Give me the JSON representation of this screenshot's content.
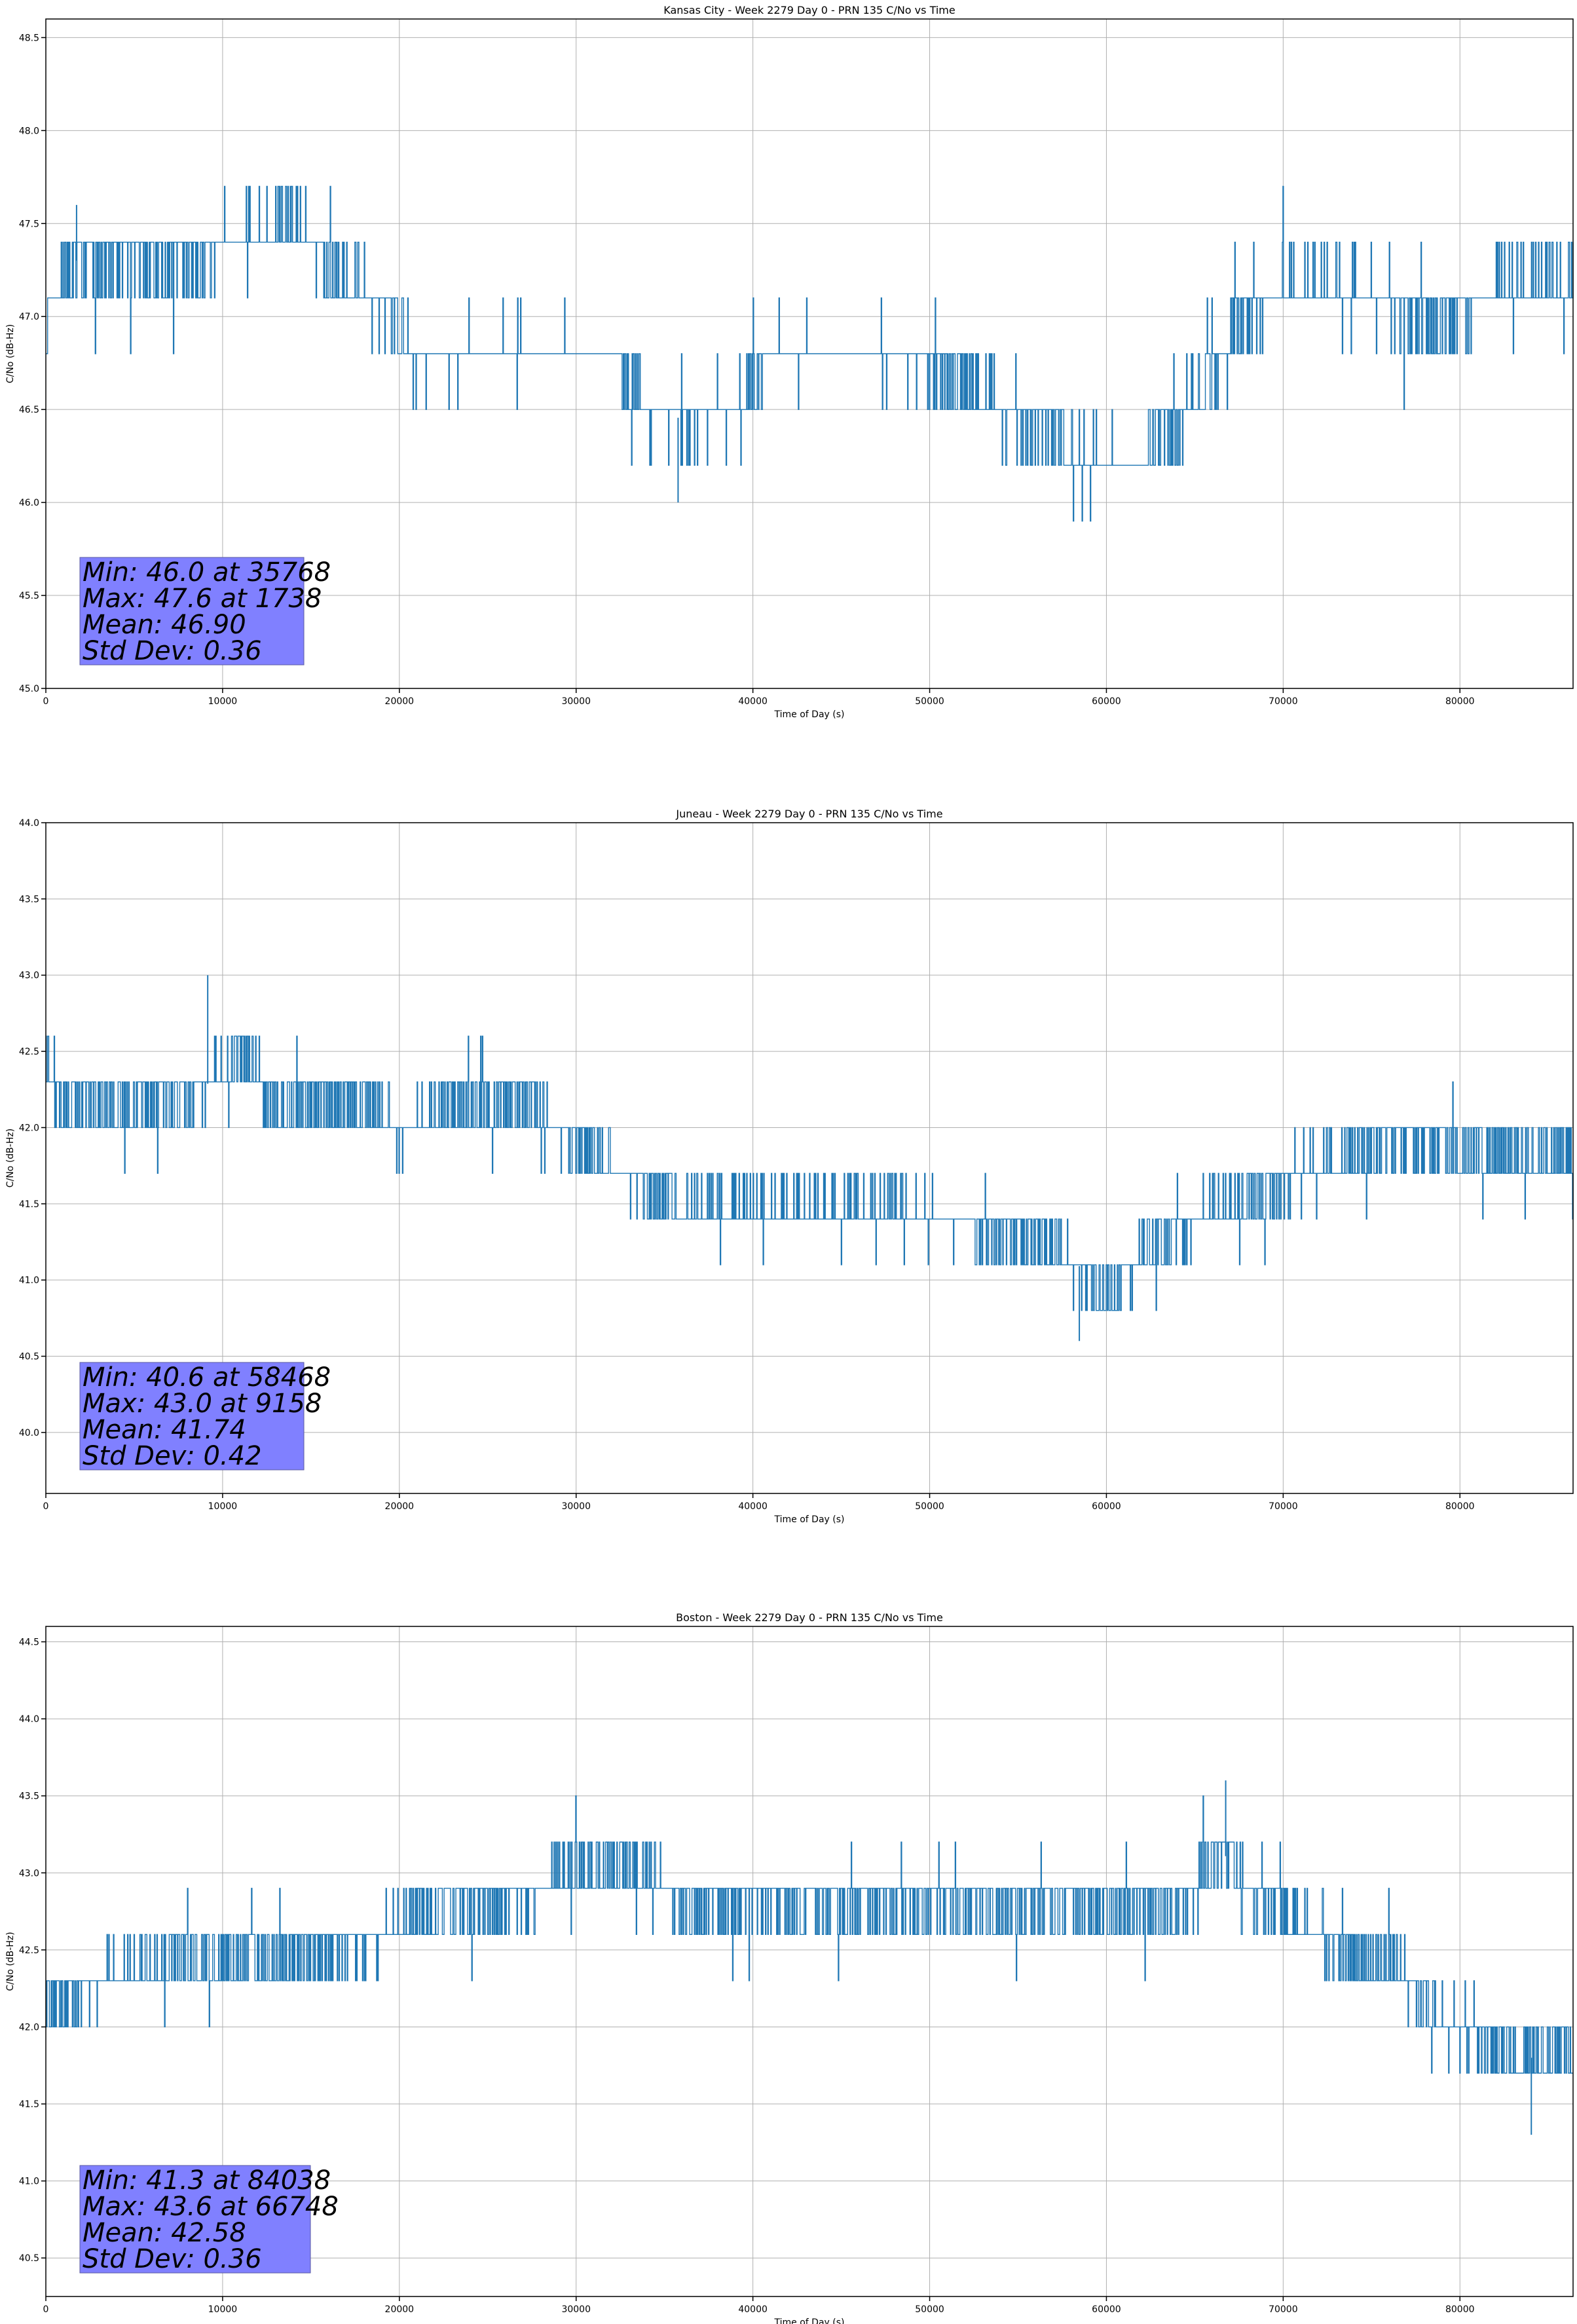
{
  "colors": {
    "series": "#1f77b4",
    "stats_box": "#8080ff",
    "grid": "#b0b0b0",
    "axis": "#000000"
  },
  "chart_data": [
    {
      "type": "line",
      "title": "Kansas City - Week 2279 Day 0 - PRN 135 C/No vs Time",
      "xlabel": "Time of Day (s)",
      "ylabel": "C/No (dB-Hz)",
      "xlim": [
        0,
        86400
      ],
      "ylim": [
        45.0,
        48.6
      ],
      "xticks": [
        0,
        10000,
        20000,
        30000,
        40000,
        50000,
        60000,
        70000,
        80000
      ],
      "yticks": [
        45.0,
        45.5,
        46.0,
        46.5,
        47.0,
        47.5,
        48.0,
        48.5
      ],
      "ytick_labels": [
        "45.0",
        "45.5",
        "46.0",
        "46.5",
        "47.0",
        "47.5",
        "48.0",
        "48.5"
      ],
      "grid": true,
      "quantum": 0.3,
      "series": [
        {
          "x": [
            0,
            1700,
            8000,
            14000,
            16500,
            19500,
            21000,
            25000,
            29000,
            32000,
            34000,
            36000,
            39000,
            41000,
            45000,
            49000,
            52500,
            55000,
            57000,
            58000,
            60000,
            62000,
            64000,
            66000,
            68000,
            70000,
            74000,
            78000,
            80000,
            82000,
            84000,
            86400
          ],
          "y": [
            47.0,
            47.3,
            47.3,
            47.5,
            47.2,
            47.0,
            46.8,
            46.8,
            46.8,
            46.8,
            46.5,
            46.45,
            46.5,
            46.8,
            46.8,
            46.8,
            46.6,
            46.45,
            46.45,
            46.25,
            46.2,
            46.2,
            46.45,
            46.7,
            47.0,
            47.15,
            47.15,
            47.0,
            47.0,
            47.15,
            47.15,
            47.15
          ],
          "band": [
            0.3,
            0.3,
            0.3,
            0.3,
            0.3,
            0.3,
            0.3,
            0.3,
            0.3,
            0.3,
            0.3,
            0.3,
            0.3,
            0.3,
            0.3,
            0.3,
            0.3,
            0.3,
            0.3,
            0.3,
            0.3,
            0.3,
            0.3,
            0.3,
            0.3,
            0.3,
            0.3,
            0.3,
            0.3,
            0.3,
            0.3,
            0.3
          ]
        }
      ],
      "extremes": [
        {
          "x": 35768,
          "y": 46.0
        },
        {
          "x": 1738,
          "y": 47.6
        }
      ],
      "stats": [
        "Min: 46.0 at 35768",
        "Max: 47.6 at 1738",
        "Mean: 46.90",
        "Std Dev: 0.36"
      ]
    },
    {
      "type": "line",
      "title": "Juneau - Week 2279 Day 0 - PRN 135 C/No vs Time",
      "xlabel": "Time of Day (s)",
      "ylabel": "C/No (dB-Hz)",
      "xlim": [
        0,
        86400
      ],
      "ylim": [
        39.6,
        44.0
      ],
      "xticks": [
        0,
        10000,
        20000,
        30000,
        40000,
        50000,
        60000,
        70000,
        80000
      ],
      "yticks": [
        40.0,
        40.5,
        41.0,
        41.5,
        42.0,
        42.5,
        43.0,
        43.5,
        44.0
      ],
      "ytick_labels": [
        "40.0",
        "40.5",
        "41.0",
        "41.5",
        "42.0",
        "42.5",
        "43.0",
        "43.5",
        "44.0"
      ],
      "grid": true,
      "quantum": 0.3,
      "series": [
        {
          "x": [
            0,
            800,
            7600,
            11000,
            13000,
            17500,
            20000,
            23000,
            27000,
            29500,
            31000,
            34000,
            36000,
            40000,
            45000,
            50000,
            55000,
            58000,
            60000,
            62000,
            64000,
            66000,
            70000,
            74000,
            76000,
            78000,
            80000,
            82000,
            86400
          ],
          "y": [
            42.45,
            42.15,
            42.15,
            42.45,
            42.15,
            42.15,
            41.95,
            42.15,
            42.15,
            41.95,
            41.8,
            41.6,
            41.45,
            41.45,
            41.45,
            41.45,
            41.3,
            41.15,
            40.9,
            41.15,
            41.3,
            41.45,
            41.65,
            41.8,
            41.95,
            41.95,
            41.8,
            41.8,
            41.8
          ]
        }
      ],
      "extremes": [
        {
          "x": 58468,
          "y": 40.6
        },
        {
          "x": 9158,
          "y": 43.0
        }
      ],
      "stats": [
        "Min: 40.6 at 58468",
        "Max: 43.0 at 9158",
        "Mean: 41.74",
        "Std Dev: 0.42"
      ]
    },
    {
      "type": "line",
      "title": "Boston - Week 2279 Day 0 - PRN 135 C/No vs Time",
      "xlabel": "Time of Day (s)",
      "ylabel": "C/No (dB-Hz)",
      "xlim": [
        0,
        86400
      ],
      "ylim": [
        40.25,
        44.6
      ],
      "xticks": [
        0,
        10000,
        20000,
        30000,
        40000,
        50000,
        60000,
        70000,
        80000
      ],
      "yticks": [
        40.5,
        41.0,
        41.5,
        42.0,
        42.5,
        43.0,
        43.5,
        44.0,
        44.5
      ],
      "ytick_labels": [
        "40.5",
        "41.0",
        "41.5",
        "42.0",
        "42.5",
        "43.0",
        "43.5",
        "44.0",
        "44.5"
      ],
      "grid": true,
      "quantum": 0.3,
      "series": [
        {
          "x": [
            0,
            3000,
            8000,
            14000,
            19000,
            22000,
            26000,
            29500,
            34000,
            36000,
            40000,
            45000,
            50000,
            55000,
            60000,
            64000,
            66500,
            68000,
            70000,
            73000,
            76000,
            78000,
            80000,
            82000,
            83500,
            86400
          ],
          "y": [
            42.15,
            42.3,
            42.45,
            42.45,
            42.6,
            42.75,
            42.8,
            43.0,
            43.0,
            42.8,
            42.8,
            42.8,
            42.8,
            42.8,
            42.8,
            42.8,
            43.15,
            42.9,
            42.75,
            42.5,
            42.4,
            42.15,
            42.0,
            41.9,
            41.8,
            41.8
          ]
        }
      ],
      "extremes": [
        {
          "x": 84038,
          "y": 41.3
        },
        {
          "x": 66748,
          "y": 43.6
        }
      ],
      "stats": [
        "Min: 41.3 at 84038",
        "Max: 43.6 at 66748",
        "Mean: 42.58",
        "Std Dev: 0.36"
      ]
    }
  ]
}
